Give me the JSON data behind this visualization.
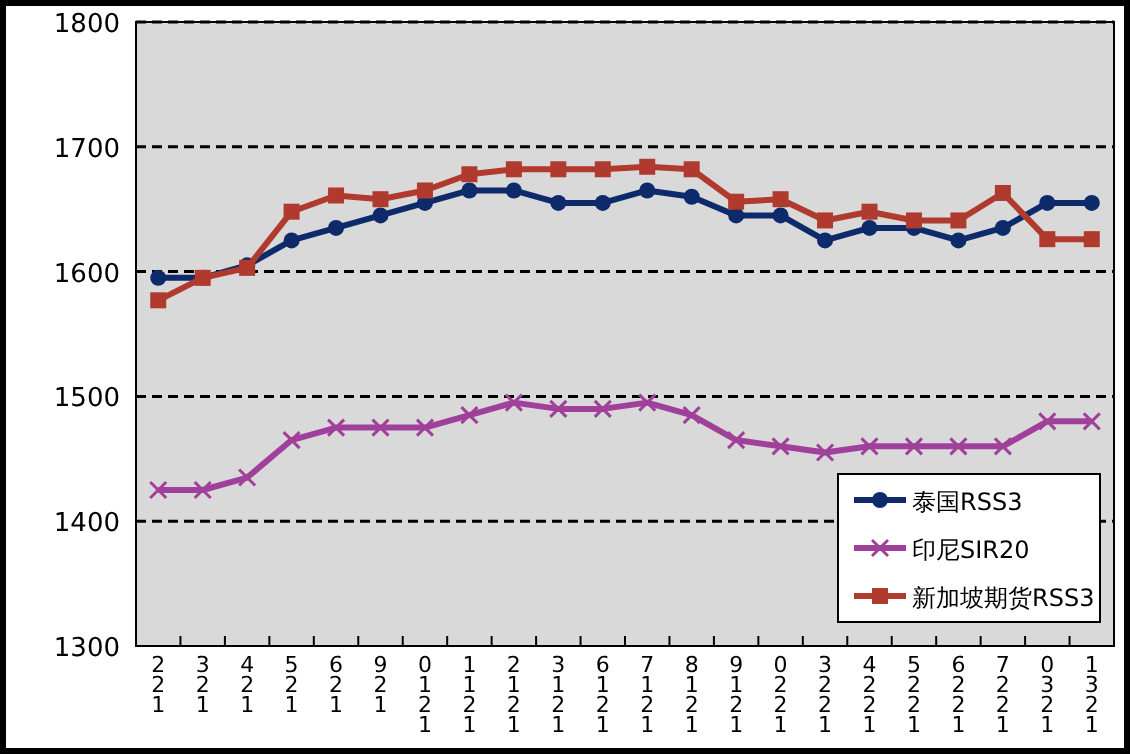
{
  "chart_data": {
    "type": "line",
    "categories": [
      "221",
      "321",
      "421",
      "521",
      "621",
      "921",
      "0121",
      "1121",
      "2121",
      "3121",
      "6121",
      "7121",
      "8121",
      "9121",
      "0221",
      "3221",
      "4221",
      "5221",
      "6221",
      "7221",
      "0321",
      "1321"
    ],
    "ylim": [
      1300,
      1800
    ],
    "yticks": [
      1300,
      1400,
      1500,
      1600,
      1700,
      1800
    ],
    "grid": "y",
    "legend": "bottom right",
    "line_style": "solid",
    "series": [
      {
        "name": "泰国RSS3",
        "color": "#0d2b6b",
        "marker": "circle",
        "values": [
          1595,
          1595,
          1605,
          1625,
          1635,
          1645,
          1655,
          1665,
          1665,
          1655,
          1655,
          1665,
          1660,
          1645,
          1645,
          1625,
          1635,
          1635,
          1625,
          1635,
          1655,
          1655
        ]
      },
      {
        "name": "印尼SIR20",
        "color": "#a0409a",
        "marker": "cross",
        "values": [
          1425,
          1425,
          1435,
          1465,
          1475,
          1475,
          1475,
          1485,
          1495,
          1490,
          1490,
          1495,
          1485,
          1465,
          1460,
          1455,
          1460,
          1460,
          1460,
          1460,
          1480,
          1480
        ]
      },
      {
        "name": "新加坡期货RSS3",
        "color": "#b03a2e",
        "marker": "square",
        "values": [
          1577,
          1595,
          1603,
          1648,
          1661,
          1658,
          1665,
          1678,
          1682,
          1682,
          1682,
          1684,
          1682,
          1656,
          1658,
          1641,
          1648,
          1641,
          1641,
          1663,
          1626,
          1626
        ]
      }
    ]
  }
}
